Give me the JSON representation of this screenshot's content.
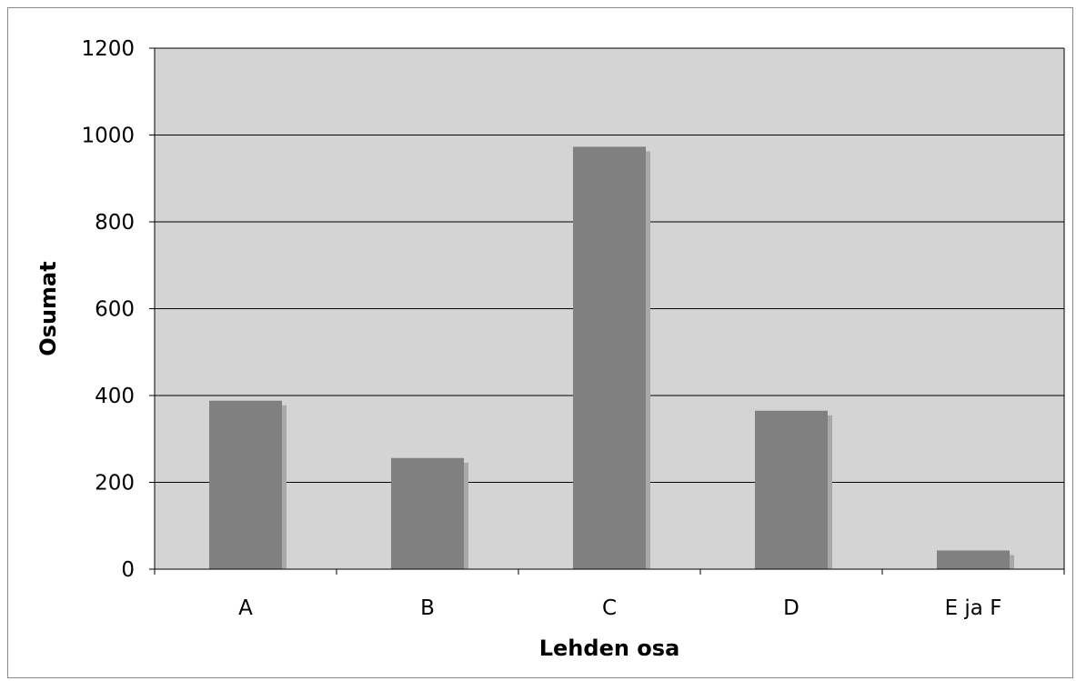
{
  "chart_data": {
    "type": "bar",
    "title": "",
    "xlabel": "Lehden osa",
    "ylabel": "Osumat",
    "categories": [
      "A",
      "B",
      "C",
      "D",
      "E ja F"
    ],
    "values": [
      388,
      256,
      973,
      365,
      43
    ],
    "ylim": [
      0,
      1200
    ],
    "yticks": [
      0,
      200,
      400,
      600,
      800,
      1000,
      1200
    ],
    "yticks_labels": [
      "0",
      "200",
      "400",
      "600",
      "800",
      "1000",
      "1200"
    ],
    "grid": true,
    "legend": "none",
    "colors": {
      "plot_background": "#d4d4d4",
      "bar": "#808080",
      "bar_shadow": "#a9a9a9",
      "gridline": "#000000"
    }
  }
}
